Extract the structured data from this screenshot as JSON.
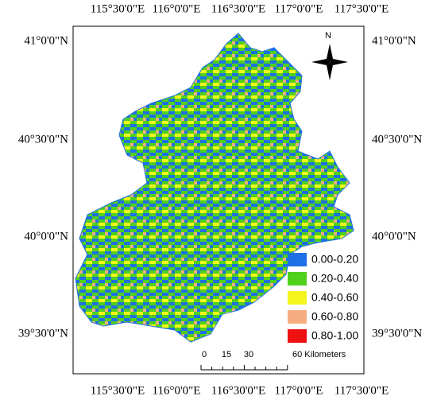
{
  "map": {
    "top_labels": [
      "115°30'0\"E",
      "116°0'0\"E",
      "116°30'0\"E",
      "117°0'0\"E",
      "117°30'0\"E"
    ],
    "bottom_labels": [
      "115°30'0\"E",
      "116°0'0\"E",
      "116°30'0\"E",
      "117°0'0\"E",
      "117°30'0\"E"
    ],
    "left_labels": [
      "41°0'0\"N",
      "40°30'0\"N",
      "40°0'0\"N",
      "39°30'0\"N"
    ],
    "right_labels": [
      "41°0'0\"N",
      "40°30'0\"N",
      "40°0'0\"N",
      "39°30'0\"N"
    ],
    "north": "N",
    "legend": [
      {
        "label": "0.00-0.20",
        "color": "#1f6fe6"
      },
      {
        "label": "0.20-0.40",
        "color": "#4fd11c"
      },
      {
        "label": "0.40-0.60",
        "color": "#f5f51e"
      },
      {
        "label": "0.60-0.80",
        "color": "#f7ad82"
      },
      {
        "label": "0.80-1.00",
        "color": "#ee1111"
      }
    ],
    "scale_bar": [
      "0",
      "15",
      "30",
      "60 Kilometers"
    ]
  }
}
